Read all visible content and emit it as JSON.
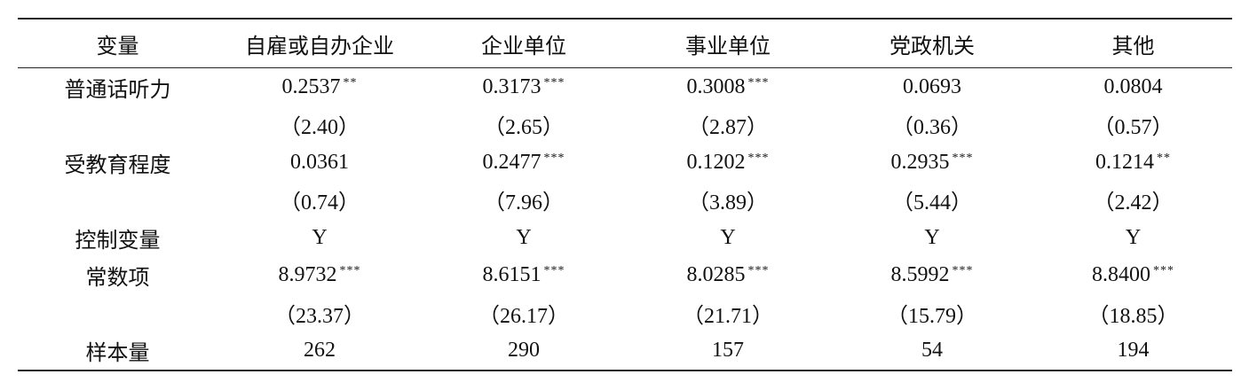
{
  "table": {
    "header": [
      "变量",
      "自雇或自办企业",
      "企业单位",
      "事业单位",
      "党政机关",
      "其他"
    ],
    "rows": [
      {
        "label": "普通话听力",
        "cells": [
          {
            "text": "0.2537",
            "stars": "**"
          },
          {
            "text": "0.3173",
            "stars": "***"
          },
          {
            "text": "0.3008",
            "stars": "***"
          },
          {
            "text": "0.0693"
          },
          {
            "text": "0.0804"
          }
        ]
      },
      {
        "cells": [
          {
            "text": "（2.40）"
          },
          {
            "text": "（2.65）"
          },
          {
            "text": "（2.87）"
          },
          {
            "text": "（0.36）"
          },
          {
            "text": "（0.57）"
          }
        ]
      },
      {
        "label": "受教育程度",
        "cells": [
          {
            "text": "0.0361"
          },
          {
            "text": "0.2477",
            "stars": "***"
          },
          {
            "text": "0.1202",
            "stars": "***"
          },
          {
            "text": "0.2935",
            "stars": "***"
          },
          {
            "text": "0.1214",
            "stars": "**"
          }
        ]
      },
      {
        "cells": [
          {
            "text": "（0.74）"
          },
          {
            "text": "（7.96）"
          },
          {
            "text": "（3.89）"
          },
          {
            "text": "（5.44）"
          },
          {
            "text": "（2.42）"
          }
        ]
      },
      {
        "label": "控制变量",
        "cells": [
          {
            "text": "Y"
          },
          {
            "text": "Y"
          },
          {
            "text": "Y"
          },
          {
            "text": "Y"
          },
          {
            "text": "Y"
          }
        ]
      },
      {
        "label": "常数项",
        "cells": [
          {
            "text": "8.9732",
            "stars": "***"
          },
          {
            "text": "8.6151",
            "stars": "***"
          },
          {
            "text": "8.0285",
            "stars": "***"
          },
          {
            "text": "8.5992",
            "stars": "***"
          },
          {
            "text": "8.8400",
            "stars": "***"
          }
        ]
      },
      {
        "cells": [
          {
            "text": "（23.37）"
          },
          {
            "text": "（26.17）"
          },
          {
            "text": "（21.71）"
          },
          {
            "text": "（15.79）"
          },
          {
            "text": "（18.85）"
          }
        ]
      },
      {
        "label": "样本量",
        "cells": [
          {
            "text": "262"
          },
          {
            "text": "290"
          },
          {
            "text": "157"
          },
          {
            "text": "54"
          },
          {
            "text": "194"
          }
        ]
      }
    ]
  }
}
